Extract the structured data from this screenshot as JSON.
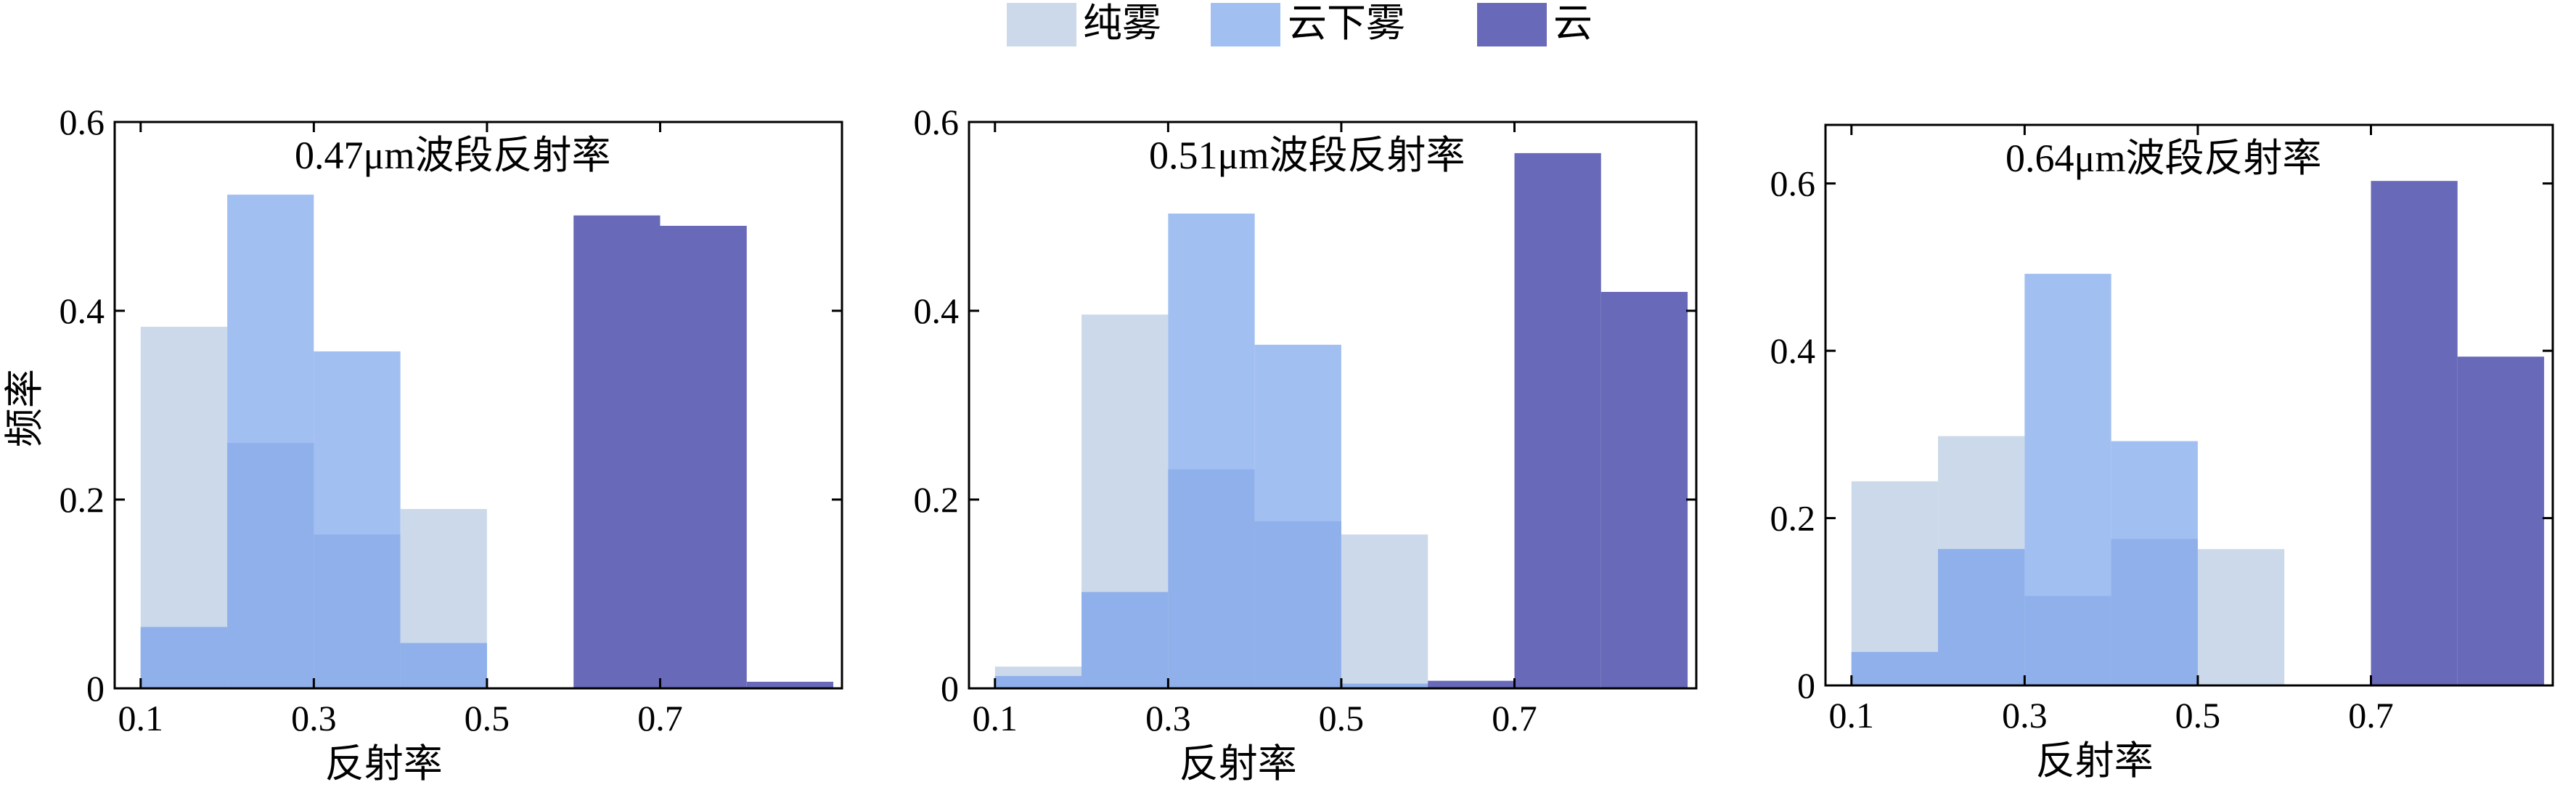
{
  "legend": {
    "position": "top-center",
    "items": [
      {
        "label": "纯雾",
        "color": "#ccd9ea"
      },
      {
        "label": "云下雾",
        "color": "#a2bff2"
      },
      {
        "label": "云",
        "color": "#6869b8"
      }
    ]
  },
  "overlap_color": "#8fb0ea",
  "chart_data": [
    {
      "type": "bar",
      "histogram": true,
      "title": "0.47μm波段反射率",
      "xlabel": "反射率",
      "ylabel": "频率",
      "bin_edges": [
        0.1,
        0.2,
        0.3,
        0.4,
        0.5,
        0.6,
        0.7,
        0.8,
        0.9
      ],
      "xlim": [
        0.07,
        0.91
      ],
      "ylim": [
        0,
        0.6
      ],
      "xticks": [
        0.1,
        0.3,
        0.5,
        0.7
      ],
      "xtick_labels": [
        "0.1",
        "0.3",
        "0.5",
        "0.7"
      ],
      "yticks": [
        0,
        0.2,
        0.4,
        0.6
      ],
      "ytick_labels": [
        "0",
        "0.2",
        "0.4",
        "0.6"
      ],
      "series": [
        {
          "name": "纯雾",
          "values": [
            0.383,
            0.26,
            0.163,
            0.19,
            0,
            0,
            0,
            0
          ]
        },
        {
          "name": "云下雾",
          "values": [
            0.065,
            0.523,
            0.357,
            0.048,
            0,
            0,
            0,
            0
          ]
        },
        {
          "name": "云",
          "values": [
            0,
            0,
            0,
            0,
            0,
            0.501,
            0.49,
            0.007
          ]
        }
      ]
    },
    {
      "type": "bar",
      "histogram": true,
      "title": "0.51μm波段反射率",
      "xlabel": "反射率",
      "ylabel": "",
      "bin_edges": [
        0.1,
        0.2,
        0.3,
        0.4,
        0.5,
        0.6,
        0.7,
        0.8,
        0.9
      ],
      "xlim": [
        0.07,
        0.91
      ],
      "ylim": [
        0,
        0.6
      ],
      "xticks": [
        0.1,
        0.3,
        0.5,
        0.7
      ],
      "xtick_labels": [
        "0.1",
        "0.3",
        "0.5",
        "0.7"
      ],
      "yticks": [
        0,
        0.2,
        0.4,
        0.6
      ],
      "ytick_labels": [
        "0",
        "0.2",
        "0.4",
        "0.6"
      ],
      "series": [
        {
          "name": "纯雾",
          "values": [
            0.023,
            0.396,
            0.232,
            0.177,
            0.163,
            0,
            0,
            0
          ]
        },
        {
          "name": "云下雾",
          "values": [
            0.013,
            0.102,
            0.503,
            0.364,
            0.005,
            0,
            0,
            0
          ]
        },
        {
          "name": "云",
          "values": [
            0,
            0,
            0,
            0,
            0,
            0.008,
            0.567,
            0.42
          ]
        }
      ]
    },
    {
      "type": "bar",
      "histogram": true,
      "title": "0.64μm波段反射率",
      "xlabel": "反射率",
      "ylabel": "",
      "bin_edges": [
        0.1,
        0.2,
        0.3,
        0.4,
        0.5,
        0.6,
        0.7,
        0.8,
        0.9
      ],
      "xlim": [
        0.07,
        0.91
      ],
      "ylim": [
        0,
        0.67
      ],
      "xticks": [
        0.1,
        0.3,
        0.5,
        0.7
      ],
      "xtick_labels": [
        "0.1",
        "0.3",
        "0.5",
        "0.7"
      ],
      "yticks": [
        0,
        0.2,
        0.4,
        0.6
      ],
      "ytick_labels": [
        "0",
        "0.2",
        "0.4",
        "0.6"
      ],
      "series": [
        {
          "name": "纯雾",
          "values": [
            0.244,
            0.298,
            0.107,
            0.175,
            0.163,
            0,
            0,
            0
          ]
        },
        {
          "name": "云下雾",
          "values": [
            0.04,
            0.163,
            0.492,
            0.292,
            0,
            0,
            0,
            0
          ]
        },
        {
          "name": "云",
          "values": [
            0,
            0,
            0,
            0,
            0,
            0,
            0.603,
            0.393
          ]
        }
      ]
    }
  ]
}
